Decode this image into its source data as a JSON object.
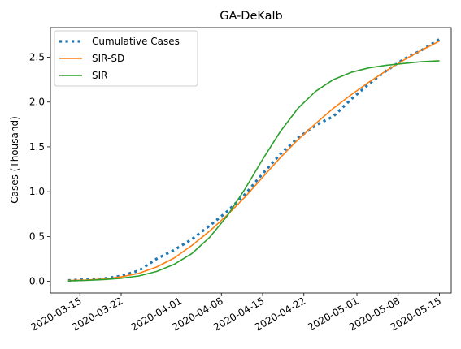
{
  "chart_data": {
    "type": "line",
    "title": "GA-DeKalb",
    "xlabel": "",
    "ylabel": "Cases (Thousand)",
    "x_axis": "date",
    "xlim": [
      "2020-03-10",
      "2020-05-17"
    ],
    "ylim": [
      -0.13,
      2.83
    ],
    "x_ticks": [
      "2020-03-15",
      "2020-03-22",
      "2020-04-01",
      "2020-04-08",
      "2020-04-15",
      "2020-04-22",
      "2020-05-01",
      "2020-05-08",
      "2020-05-15"
    ],
    "y_ticks": [
      0.0,
      0.5,
      1.0,
      1.5,
      2.0,
      2.5
    ],
    "y_tick_labels": [
      "0.0",
      "0.5",
      "1.0",
      "1.5",
      "2.0",
      "2.5"
    ],
    "grid": false,
    "legend_position": "top-left",
    "series": [
      {
        "name": "Cumulative Cases",
        "style": "dotted",
        "color": "#1f77b4",
        "x": [
          "2020-03-13",
          "2020-03-16",
          "2020-03-19",
          "2020-03-22",
          "2020-03-25",
          "2020-03-28",
          "2020-03-31",
          "2020-04-03",
          "2020-04-06",
          "2020-04-09",
          "2020-04-12",
          "2020-04-15",
          "2020-04-18",
          "2020-04-21",
          "2020-04-24",
          "2020-04-27",
          "2020-04-30",
          "2020-05-03",
          "2020-05-06",
          "2020-05-09",
          "2020-05-12",
          "2020-05-15"
        ],
        "y": [
          0.01,
          0.02,
          0.03,
          0.06,
          0.12,
          0.25,
          0.35,
          0.47,
          0.62,
          0.78,
          0.97,
          1.2,
          1.42,
          1.6,
          1.74,
          1.84,
          2.03,
          2.2,
          2.35,
          2.48,
          2.58,
          2.7
        ]
      },
      {
        "name": "SIR-SD",
        "style": "solid",
        "color": "#ff7f0e",
        "x": [
          "2020-03-13",
          "2020-03-16",
          "2020-03-19",
          "2020-03-22",
          "2020-03-25",
          "2020-03-28",
          "2020-03-31",
          "2020-04-03",
          "2020-04-06",
          "2020-04-09",
          "2020-04-12",
          "2020-04-15",
          "2020-04-18",
          "2020-04-21",
          "2020-04-24",
          "2020-04-27",
          "2020-04-30",
          "2020-05-03",
          "2020-05-06",
          "2020-05-09",
          "2020-05-12",
          "2020-05-15"
        ],
        "y": [
          0.01,
          0.015,
          0.025,
          0.05,
          0.09,
          0.16,
          0.26,
          0.4,
          0.56,
          0.74,
          0.94,
          1.16,
          1.38,
          1.58,
          1.76,
          1.93,
          2.08,
          2.22,
          2.35,
          2.47,
          2.58,
          2.68
        ]
      },
      {
        "name": "SIR",
        "style": "solid",
        "color": "#2ca02c",
        "x": [
          "2020-03-13",
          "2020-03-16",
          "2020-03-19",
          "2020-03-22",
          "2020-03-25",
          "2020-03-28",
          "2020-03-31",
          "2020-04-03",
          "2020-04-06",
          "2020-04-09",
          "2020-04-12",
          "2020-04-15",
          "2020-04-18",
          "2020-04-21",
          "2020-04-24",
          "2020-04-27",
          "2020-04-30",
          "2020-05-03",
          "2020-05-06",
          "2020-05-09",
          "2020-05-12",
          "2020-05-15"
        ],
        "y": [
          0.005,
          0.01,
          0.02,
          0.035,
          0.06,
          0.11,
          0.19,
          0.31,
          0.49,
          0.73,
          1.03,
          1.36,
          1.67,
          1.93,
          2.12,
          2.25,
          2.33,
          2.38,
          2.41,
          2.43,
          2.45,
          2.46
        ]
      }
    ]
  }
}
